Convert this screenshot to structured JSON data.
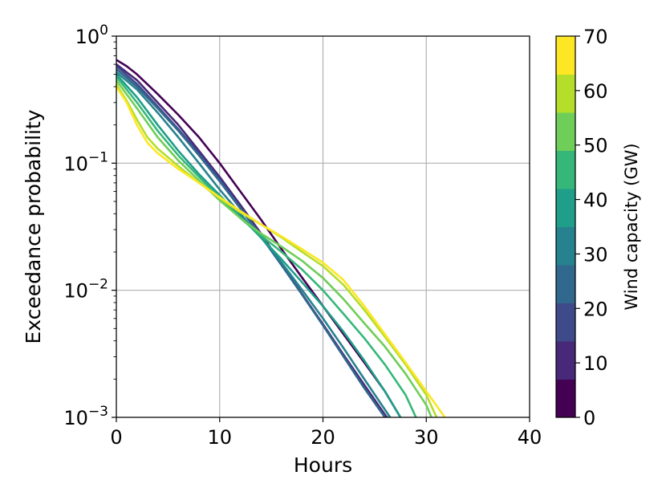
{
  "chart_data": {
    "type": "line",
    "title": "",
    "xlabel": "Hours",
    "ylabel": "Exceedance probability",
    "xlim": [
      0,
      40
    ],
    "ylim": [
      0.001,
      1
    ],
    "yscale": "log",
    "grid": true,
    "x_ticks": [
      "0",
      "10",
      "20",
      "30",
      "40"
    ],
    "y_ticks": [
      {
        "base": "10",
        "exp": "0",
        "value": 1
      },
      {
        "base": "10",
        "exp": "−1",
        "value": 0.1
      },
      {
        "base": "10",
        "exp": "−2",
        "value": 0.01
      },
      {
        "base": "10",
        "exp": "−3",
        "value": 0.001
      }
    ],
    "colorbar": {
      "label": "Wind capacity (GW)",
      "range": [
        0,
        70
      ],
      "ticks": [
        "0",
        "10",
        "20",
        "30",
        "40",
        "50",
        "60",
        "70"
      ],
      "colors": [
        "#440154",
        "#482878",
        "#3e4a89",
        "#31688e",
        "#26828e",
        "#1f9e89",
        "#35b779",
        "#6ece58",
        "#b5de2b",
        "#fde725"
      ]
    },
    "series": [
      {
        "capacity": 0,
        "color": "#440154",
        "x": [
          0,
          1,
          2,
          4,
          6,
          8,
          10,
          12,
          14,
          16,
          18,
          20,
          22,
          24,
          26,
          27.5
        ],
        "y": [
          0.65,
          0.58,
          0.5,
          0.35,
          0.24,
          0.16,
          0.1,
          0.06,
          0.036,
          0.021,
          0.0125,
          0.0075,
          0.0045,
          0.0027,
          0.0016,
          0.001
        ]
      },
      {
        "capacity": 10,
        "color": "#482878",
        "x": [
          0,
          2,
          4,
          6,
          8,
          10,
          12,
          14,
          16,
          18,
          20,
          22,
          24,
          26,
          26.2
        ],
        "y": [
          0.6,
          0.45,
          0.3,
          0.2,
          0.125,
          0.078,
          0.047,
          0.028,
          0.016,
          0.0093,
          0.0054,
          0.0031,
          0.0018,
          0.00105,
          0.001
        ]
      },
      {
        "capacity": 20,
        "color": "#3e4a89",
        "x": [
          0,
          2,
          4,
          6,
          8,
          10,
          12,
          14,
          16,
          18,
          20,
          22,
          24,
          26
        ],
        "y": [
          0.58,
          0.42,
          0.28,
          0.185,
          0.12,
          0.075,
          0.045,
          0.027,
          0.0158,
          0.0092,
          0.0053,
          0.003,
          0.0017,
          0.001
        ]
      },
      {
        "capacity": 30,
        "color": "#31688e",
        "x": [
          0,
          2,
          4,
          6,
          8,
          10,
          12,
          14,
          16,
          18,
          20,
          22,
          24,
          26
        ],
        "y": [
          0.55,
          0.4,
          0.27,
          0.18,
          0.115,
          0.072,
          0.044,
          0.0265,
          0.0157,
          0.0092,
          0.0053,
          0.003,
          0.0017,
          0.001
        ]
      },
      {
        "capacity": 40,
        "color": "#26828e",
        "x": [
          0,
          2,
          4,
          6,
          8,
          10,
          12,
          14,
          16,
          18,
          20,
          22,
          24,
          26.5
        ],
        "y": [
          0.52,
          0.38,
          0.25,
          0.16,
          0.1,
          0.062,
          0.04,
          0.026,
          0.0165,
          0.01,
          0.006,
          0.0035,
          0.002,
          0.001
        ]
      },
      {
        "capacity": 50,
        "color": "#1f9e89",
        "x": [
          0,
          2,
          4,
          6,
          8,
          10,
          12,
          14,
          16,
          18,
          20,
          22,
          24,
          26,
          27.5
        ],
        "y": [
          0.5,
          0.33,
          0.2,
          0.125,
          0.082,
          0.056,
          0.038,
          0.026,
          0.0175,
          0.0115,
          0.0075,
          0.0047,
          0.0028,
          0.0016,
          0.001
        ]
      },
      {
        "capacity": 60,
        "color": "#35b779",
        "x": [
          0,
          2,
          4,
          6,
          8,
          10,
          12,
          14,
          16,
          18,
          20,
          22,
          24,
          26,
          28,
          29
        ],
        "y": [
          0.48,
          0.3,
          0.18,
          0.115,
          0.078,
          0.053,
          0.037,
          0.027,
          0.02,
          0.0145,
          0.01,
          0.0065,
          0.0042,
          0.0026,
          0.0015,
          0.001
        ]
      },
      {
        "capacity": 65,
        "color": "#6ece58",
        "x": [
          0,
          2,
          4,
          6,
          8,
          10,
          12,
          14,
          16,
          18,
          20,
          22,
          24,
          26,
          28,
          30,
          30.5
        ],
        "y": [
          0.45,
          0.27,
          0.16,
          0.105,
          0.073,
          0.051,
          0.037,
          0.028,
          0.022,
          0.017,
          0.0125,
          0.0085,
          0.0055,
          0.0036,
          0.0022,
          0.00125,
          0.001
        ]
      },
      {
        "capacity": 70,
        "color": "#b5de2b",
        "x": [
          0,
          1,
          2,
          3,
          4,
          6,
          8,
          10,
          12,
          14,
          16,
          18,
          20,
          22,
          24,
          26,
          28,
          30,
          31
        ],
        "y": [
          0.42,
          0.31,
          0.22,
          0.16,
          0.13,
          0.095,
          0.07,
          0.053,
          0.041,
          0.033,
          0.026,
          0.02,
          0.0155,
          0.011,
          0.007,
          0.0043,
          0.0026,
          0.0015,
          0.001
        ]
      },
      {
        "capacity": 72,
        "color": "#fde725",
        "x": [
          0,
          1,
          2,
          3,
          4,
          6,
          8,
          10,
          12,
          14,
          16,
          18,
          20,
          22,
          24,
          26,
          28,
          30,
          31.8
        ],
        "y": [
          0.4,
          0.3,
          0.2,
          0.145,
          0.12,
          0.09,
          0.07,
          0.054,
          0.042,
          0.033,
          0.0265,
          0.021,
          0.0165,
          0.012,
          0.0075,
          0.0045,
          0.0027,
          0.0016,
          0.001
        ]
      }
    ]
  }
}
